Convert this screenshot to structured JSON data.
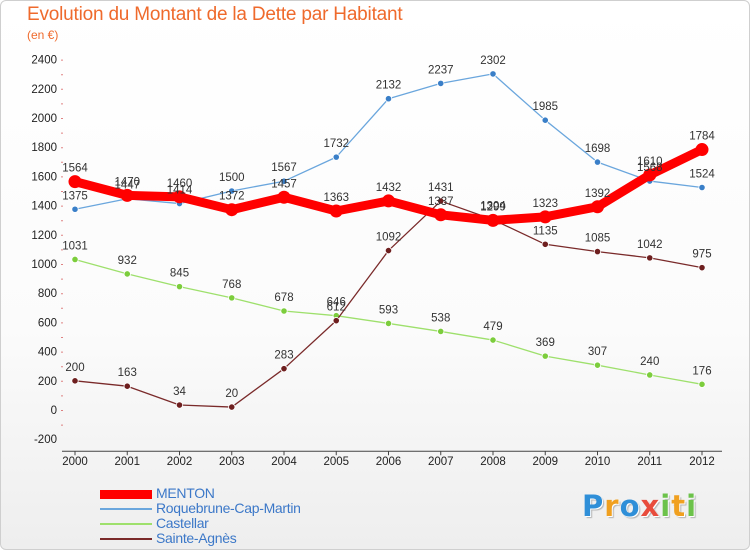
{
  "header": {
    "title": "Evolution du Montant de la Dette par Habitant",
    "unit": "(en €)"
  },
  "logo": {
    "text": "Proxiti",
    "letters": [
      {
        "ch": "P",
        "color": "#2f8fd8"
      },
      {
        "ch": "r",
        "color": "#f0a020"
      },
      {
        "ch": "o",
        "color": "#2f8fd8"
      },
      {
        "ch": "x",
        "color": "#e84c3c"
      },
      {
        "ch": "i",
        "color": "#6cc24a"
      },
      {
        "ch": "t",
        "color": "#f0a020"
      },
      {
        "ch": "i",
        "color": "#6cc24a"
      }
    ]
  },
  "chart_data": {
    "type": "line",
    "title": "Evolution du Montant de la Dette par Habitant",
    "ylabel": "(en €)",
    "ylim": [
      -200,
      2400
    ],
    "yticks": [
      -200,
      0,
      200,
      400,
      600,
      800,
      1000,
      1200,
      1400,
      1600,
      1800,
      2000,
      2200,
      2400
    ],
    "grid": false,
    "legend": "bottom-left",
    "categories": [
      "2000",
      "2001",
      "2002",
      "2003",
      "2004",
      "2005",
      "2006",
      "2007",
      "2008",
      "2009",
      "2010",
      "2011",
      "2012"
    ],
    "series": [
      {
        "name": "MENTON",
        "color": "#ff0000",
        "width": "thick",
        "values": [
          1564,
          1470,
          1460,
          1372,
          1457,
          1363,
          1432,
          1337,
          1299,
          1323,
          1392,
          1610,
          1784
        ]
      },
      {
        "name": "Roquebrune-Cap-Martin",
        "color": "#6aa6dd",
        "point_color": "#3a7fc8",
        "width": "thin",
        "values": [
          1375,
          1447,
          1414,
          1500,
          1567,
          1732,
          2132,
          2237,
          2302,
          1985,
          1698,
          1568,
          1524
        ]
      },
      {
        "name": "Castellar",
        "color": "#9ee06c",
        "point_color": "#7ccd3c",
        "width": "thin",
        "values": [
          1031,
          932,
          845,
          768,
          678,
          646,
          593,
          538,
          479,
          369,
          307,
          240,
          176
        ]
      },
      {
        "name": "Sainte-Agnès",
        "color": "#7a2a2a",
        "point_color": "#6e1f1f",
        "width": "thin",
        "values": [
          200,
          163,
          34,
          20,
          283,
          612,
          1092,
          1431,
          1304,
          1135,
          1085,
          1042,
          975
        ]
      }
    ]
  }
}
